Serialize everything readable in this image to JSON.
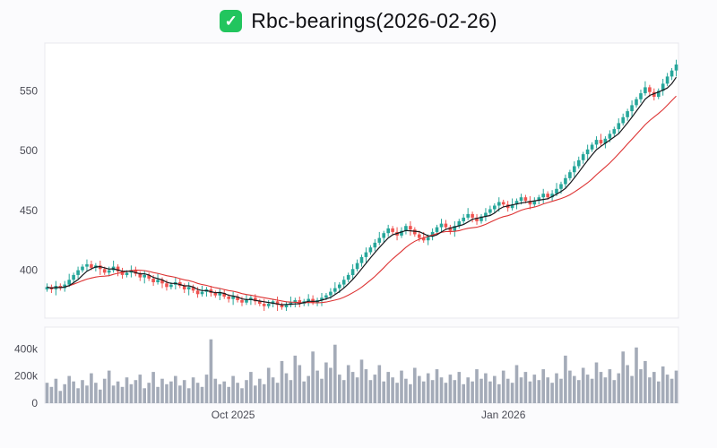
{
  "title": {
    "icon": "checked-checkbox-icon",
    "text": "Rbc-bearings(2026-02-26)"
  },
  "colors": {
    "page_bg": "#fbfbfd",
    "panel_bg": "#ffffff",
    "panel_border": "#e8e8ee",
    "axis_text": "#4a4b55",
    "title_text": "#101014",
    "check_bg": "#22c55e",
    "up": "#26a69a",
    "down": "#ef5350",
    "volume": "#a4abb8",
    "ma_fast": "#17181c",
    "ma_slow": "#dd3333"
  },
  "chart_data": {
    "type": "candlestick+volume",
    "title": "Rbc-bearings(2026-02-26)",
    "legend": "none",
    "grid": "off",
    "price_axis": {
      "ticks": [
        550,
        500,
        450,
        400
      ],
      "domain": [
        360,
        590
      ]
    },
    "volume_axis": {
      "ticks": [
        "400k",
        "200k",
        "0"
      ],
      "tick_values": [
        400,
        200,
        0
      ],
      "domain": [
        0,
        560
      ],
      "unit": "thousands"
    },
    "x_ticks": [
      {
        "label": "Oct 2025",
        "index": 42
      },
      {
        "label": "Jan 2026",
        "index": 103
      }
    ],
    "ma_fast_window": 5,
    "ma_slow_window": 15,
    "open_rule": "previous_close",
    "wick_pattern": [
      3,
      2,
      4,
      2,
      3,
      5,
      2,
      3,
      2,
      4
    ],
    "closes": [
      386,
      384,
      387,
      385,
      388,
      392,
      396,
      400,
      403,
      405,
      402,
      404,
      401,
      398,
      400,
      403,
      399,
      396,
      398,
      400,
      397,
      394,
      396,
      393,
      390,
      392,
      389,
      386,
      388,
      390,
      387,
      384,
      386,
      383,
      380,
      382,
      384,
      381,
      379,
      381,
      378,
      376,
      378,
      375,
      373,
      375,
      377,
      374,
      372,
      370,
      372,
      374,
      371,
      369,
      371,
      373,
      375,
      372,
      374,
      376,
      373,
      375,
      377,
      379,
      382,
      385,
      388,
      392,
      396,
      401,
      406,
      411,
      415,
      419,
      423,
      427,
      431,
      435,
      432,
      429,
      433,
      437,
      434,
      430,
      427,
      425,
      428,
      432,
      436,
      439,
      436,
      433,
      437,
      441,
      444,
      447,
      444,
      441,
      445,
      448,
      451,
      454,
      457,
      455,
      452,
      455,
      458,
      461,
      458,
      455,
      458,
      461,
      464,
      461,
      464,
      468,
      472,
      477,
      482,
      487,
      492,
      497,
      501,
      505,
      509,
      506,
      510,
      514,
      518,
      523,
      528,
      533,
      538,
      543,
      548,
      553,
      549,
      545,
      550,
      556,
      562,
      567,
      572
    ],
    "volumes_k": [
      150,
      120,
      180,
      90,
      140,
      200,
      160,
      110,
      170,
      130,
      220,
      150,
      100,
      180,
      240,
      130,
      160,
      120,
      190,
      140,
      170,
      210,
      110,
      150,
      230,
      120,
      180,
      140,
      160,
      200,
      130,
      170,
      110,
      190,
      150,
      120,
      210,
      470,
      180,
      140,
      160,
      120,
      200,
      150,
      110,
      170,
      230,
      130,
      180,
      140,
      260,
      190,
      150,
      310,
      220,
      170,
      350,
      280,
      160,
      200,
      380,
      240,
      180,
      300,
      260,
      430,
      210,
      170,
      280,
      230,
      190,
      320,
      250,
      170,
      210,
      280,
      160,
      230,
      190,
      150,
      240,
      180,
      140,
      260,
      200,
      160,
      220,
      170,
      250,
      190,
      150,
      210,
      170,
      230,
      140,
      190,
      160,
      250,
      180,
      220,
      160,
      200,
      140,
      240,
      180,
      150,
      280,
      190,
      230,
      160,
      210,
      170,
      250,
      190,
      150,
      220,
      180,
      350,
      240,
      200,
      170,
      260,
      210,
      180,
      300,
      230,
      190,
      250,
      170,
      220,
      380,
      280,
      200,
      410,
      250,
      310,
      190,
      230,
      160,
      270,
      210,
      180,
      240
    ]
  }
}
